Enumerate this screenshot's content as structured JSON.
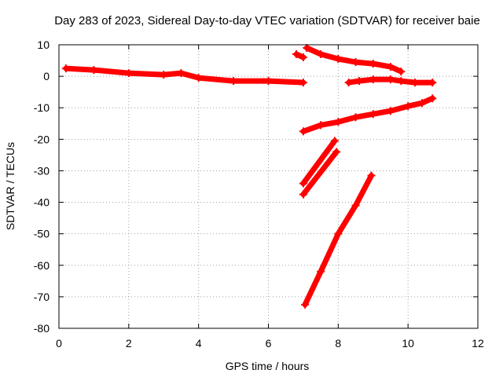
{
  "chart_data": {
    "type": "scatter",
    "title": "Day 283 of 2023, Sidereal Day-to-day VTEC variation (SDTVAR) for receiver baie",
    "xlabel": "GPS time / hours",
    "ylabel": "SDTVAR / TECUs",
    "xlim": [
      0,
      12
    ],
    "ylim": [
      -80,
      10
    ],
    "x_ticks": [
      "0",
      "2",
      "4",
      "6",
      "8",
      "10",
      "12"
    ],
    "y_ticks": [
      "10",
      "0",
      "-10",
      "-20",
      "-30",
      "-40",
      "-50",
      "-60",
      "-70",
      "-80"
    ],
    "grid": true,
    "marker_color": "#ff0000",
    "series": [
      {
        "x": [
          0.2,
          1.0,
          2.0,
          3.0,
          3.5,
          4.0,
          5.0,
          6.0,
          7.0
        ],
        "y": [
          2.5,
          2.0,
          1.0,
          0.5,
          1.0,
          -0.5,
          -1.5,
          -1.5,
          -2.0
        ]
      },
      {
        "x": [
          6.8,
          7.0
        ],
        "y": [
          7.0,
          6.0
        ]
      },
      {
        "x": [
          7.1,
          7.5,
          8.0,
          8.5,
          9.0,
          9.5,
          9.8
        ],
        "y": [
          9.0,
          7.0,
          5.5,
          4.5,
          4.0,
          3.0,
          1.5
        ]
      },
      {
        "x": [
          8.3,
          8.6,
          9.0,
          9.5,
          9.8,
          10.2,
          10.7
        ],
        "y": [
          -2.0,
          -1.5,
          -1.0,
          -1.0,
          -1.5,
          -2.0,
          -2.0
        ]
      },
      {
        "x": [
          7.0,
          7.5,
          8.0,
          8.5,
          9.0,
          9.5,
          10.0,
          10.4,
          10.7
        ],
        "y": [
          -17.5,
          -15.5,
          -14.5,
          -13.0,
          -12.0,
          -11.0,
          -9.5,
          -8.5,
          -7.0
        ]
      },
      {
        "x": [
          7.0,
          7.9
        ],
        "y": [
          -34.0,
          -20.5
        ]
      },
      {
        "x": [
          7.0,
          7.95
        ],
        "y": [
          -37.5,
          -24.0
        ]
      },
      {
        "x": [
          7.05,
          7.5,
          8.0,
          8.5,
          8.95
        ],
        "y": [
          -72.5,
          -62.0,
          -50.0,
          -41.0,
          -31.5
        ]
      }
    ]
  }
}
